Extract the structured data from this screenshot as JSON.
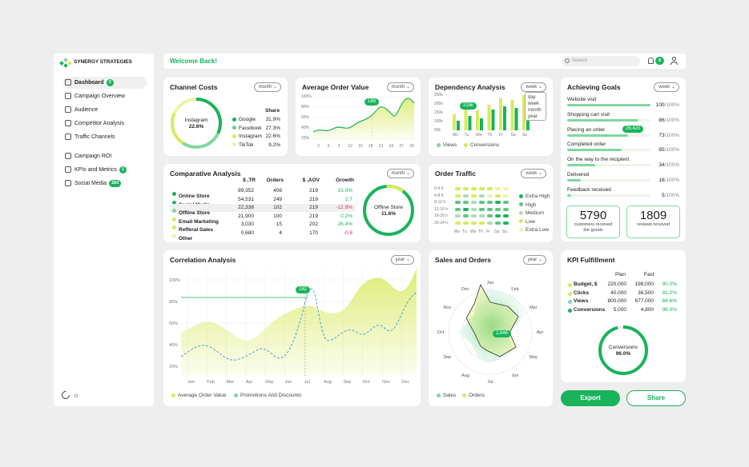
{
  "brand": {
    "name": "SYNERGY STRATEGIES"
  },
  "header": {
    "welcome": "Welcome Back!",
    "search_placeholder": "Search",
    "notifications": "9"
  },
  "sidebar": {
    "items": [
      {
        "label": "Dashboard",
        "badge": "3",
        "icon": "grid-icon"
      },
      {
        "label": "Campaign Overview",
        "badge": "",
        "icon": "document-icon"
      },
      {
        "label": "Audience",
        "badge": "",
        "icon": "globe-icon"
      },
      {
        "label": "Competitor Analysis",
        "badge": "",
        "icon": "target-icon"
      },
      {
        "label": "Traffic Channels",
        "badge": "",
        "icon": "chart-line-icon"
      }
    ],
    "items2": [
      {
        "label": "Campaign ROI",
        "badge": "",
        "icon": "money-icon"
      },
      {
        "label": "KPIs and Metrics",
        "badge": "1",
        "icon": "gauge-icon"
      },
      {
        "label": "Social Media",
        "badge": "260",
        "icon": "share-icon"
      }
    ]
  },
  "channel_costs": {
    "title": "Channel Costs",
    "period": "month",
    "center_label": "Instagram",
    "center_value": "22.6%",
    "share_header": "Share",
    "rows": [
      {
        "name": "Google",
        "value": "31.9%",
        "color": "#19b35b"
      },
      {
        "name": "Facebook",
        "value": "27.3%",
        "color": "#5fd08a"
      },
      {
        "name": "Instagram",
        "value": "22.6%",
        "color": "#d8ea5e"
      },
      {
        "name": "TikTok",
        "value": "9.2%",
        "color": "#eef3a6"
      }
    ]
  },
  "aov": {
    "title": "Average Order Value",
    "period": "month",
    "yticks": [
      "100%",
      "80%",
      "60%",
      "40%",
      "20%"
    ],
    "xticks": [
      "3",
      "6",
      "9",
      "12",
      "15",
      "18",
      "21",
      "24",
      "27",
      "30"
    ],
    "marker": "189"
  },
  "dependency": {
    "title": "Dependency Analysis",
    "period": "week",
    "yticks": [
      "250k",
      "200k",
      "150k",
      "100k",
      "50k"
    ],
    "days": [
      "Mo",
      "Tu",
      "We",
      "Th",
      "Fr",
      "Sa",
      "Su"
    ],
    "marker": "215k",
    "menu": [
      "day",
      "week",
      "month",
      "year"
    ],
    "legend": [
      "Views",
      "Conversions"
    ]
  },
  "goals": {
    "title": "Achieving Goals",
    "period": "week",
    "items": [
      {
        "label": "Website visit",
        "value": "100",
        "max": "/100%",
        "pct": 100
      },
      {
        "label": "Shopping cart visit",
        "value": "86",
        "max": "/100%",
        "pct": 86
      },
      {
        "label": "Placing an order",
        "value": "73",
        "max": "/100%",
        "pct": 73,
        "tag": "26,420"
      },
      {
        "label": "Completed order",
        "value": "65",
        "max": "/100%",
        "pct": 65
      },
      {
        "label": "On the way to the recipient",
        "value": "34",
        "max": "/100%",
        "pct": 34
      },
      {
        "label": "Delivered",
        "value": "16",
        "max": "/100%",
        "pct": 16
      },
      {
        "label": "Feedback received",
        "value": "5",
        "max": "/100%",
        "pct": 5
      }
    ],
    "stat1": {
      "value": "5790",
      "label": "customers received the goods"
    },
    "stat2": {
      "value": "1809",
      "label": "reviews received"
    }
  },
  "comparative": {
    "title": "Comparative Analysis",
    "period": "month",
    "headers": [
      "TR, $",
      "Orders",
      "AOV, $",
      "Growth"
    ],
    "rows": [
      {
        "name": "Online Store",
        "tr": "89,352",
        "orders": "408",
        "aov": "219",
        "growth": "15.0%",
        "up": true,
        "color": "#19b35b"
      },
      {
        "name": "Social Media",
        "tr": "54,531",
        "orders": "249",
        "aov": "219",
        "growth": "2.7",
        "up": true,
        "color": "#19b35b"
      },
      {
        "name": "Offline Store",
        "tr": "22,338",
        "orders": "102",
        "aov": "219",
        "growth": "-12.9%",
        "up": false,
        "color": "#7fd8a0"
      },
      {
        "name": "Email Marketing",
        "tr": "21,900",
        "orders": "100",
        "aov": "219",
        "growth": "0.2%",
        "up": true,
        "color": "#d8ea5e"
      },
      {
        "name": "Refferal Sales",
        "tr": "3,030",
        "orders": "15",
        "aov": "202",
        "growth": "26.4%",
        "up": true,
        "color": "#d8ea5e"
      },
      {
        "name": "Other",
        "tr": "0,680",
        "orders": "4",
        "aov": "170",
        "growth": "-0.8",
        "up": false,
        "color": "#eef3a6"
      }
    ],
    "donut_label": "Offline Store",
    "donut_value": "11.6%"
  },
  "traffic": {
    "title": "Order Traffic",
    "period": "week",
    "rows": [
      "0-4 h",
      "4-8 h",
      "8-12 h",
      "12-16 h",
      "16-20 h",
      "20-24 h"
    ],
    "days": [
      "Mo",
      "Tu",
      "We",
      "Th",
      "Fr",
      "Sa",
      "Su"
    ],
    "legend": [
      "Extra High",
      "High",
      "Medium",
      "Low",
      "Extra Low"
    ]
  },
  "correlation": {
    "title": "Correlation Analysis",
    "period": "year",
    "yticks": [
      "100%",
      "80%",
      "60%",
      "40%",
      "20%"
    ],
    "months": [
      "Jan",
      "Feb",
      "Mar",
      "Apr",
      "May",
      "Jun",
      "Jul",
      "Aug",
      "Sep",
      "Oct",
      "Nov",
      "Dec"
    ],
    "marker": "182",
    "legend": [
      "Average Order Value",
      "Promotions And Discounts"
    ]
  },
  "sales": {
    "title": "Sales and Orders",
    "period": "year",
    "months": [
      "Jan",
      "Feb",
      "Mar",
      "Apr",
      "May",
      "Jun",
      "Jul",
      "Aug",
      "Sep",
      "Oct",
      "Nov",
      "Dec"
    ],
    "marker": "2,846",
    "legend": [
      "Sales",
      "Orders"
    ]
  },
  "kpi": {
    "title": "KPI Fulfillment",
    "headers": [
      "Plan",
      "Fact"
    ],
    "rows": [
      {
        "name": "Budget, $",
        "plan": "220,000",
        "fact": "198,000",
        "pct": "90.0%",
        "color": "#d8ea5e"
      },
      {
        "name": "Clicks",
        "plan": "40,000",
        "fact": "36,500",
        "pct": "91.2%",
        "color": "#d8ea5e"
      },
      {
        "name": "Views",
        "plan": "800,000",
        "fact": "677,000",
        "pct": "84.6%",
        "color": "#7fd8a0"
      },
      {
        "name": "Conversions",
        "plan": "5,000",
        "fact": "4,800",
        "pct": "96.0%",
        "color": "#19b35b"
      }
    ],
    "donut_label": "Conversions",
    "donut_value": "96.0%"
  },
  "actions": {
    "export": "Export",
    "share": "Share"
  }
}
